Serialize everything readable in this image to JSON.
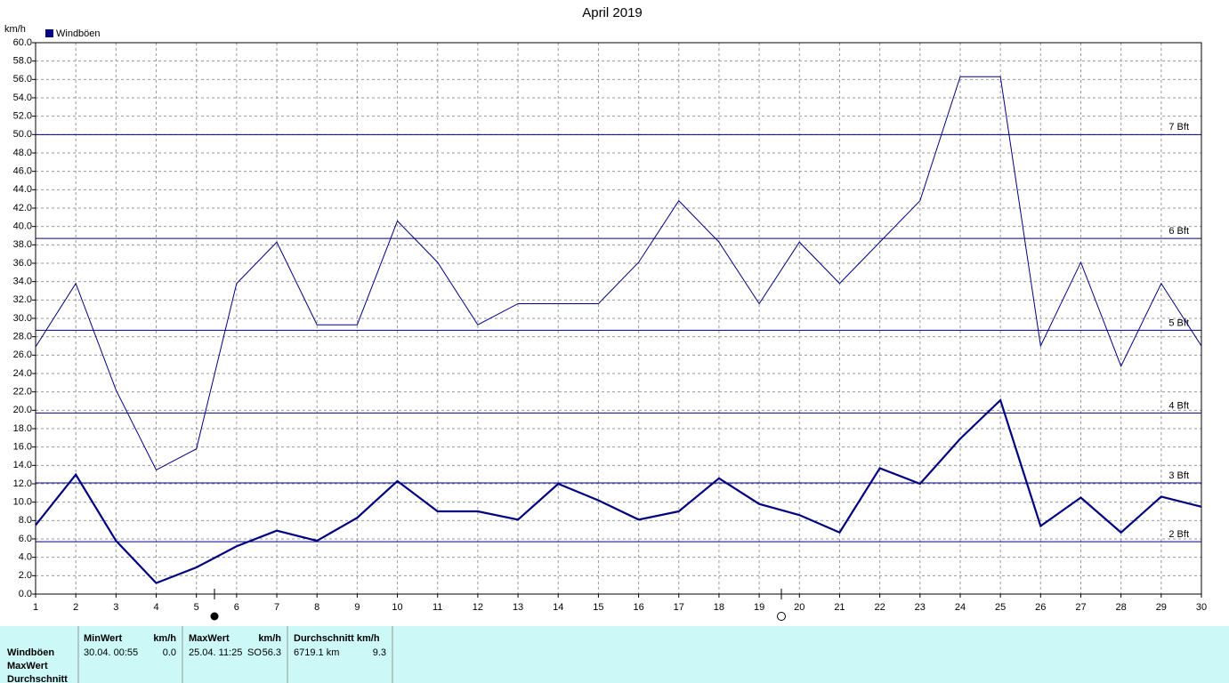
{
  "chart_data": {
    "type": "line",
    "title": "April 2019",
    "y_label": "km/h",
    "x": [
      1,
      2,
      3,
      4,
      5,
      6,
      7,
      8,
      9,
      10,
      11,
      12,
      13,
      14,
      15,
      16,
      17,
      18,
      19,
      20,
      21,
      22,
      23,
      24,
      25,
      26,
      27,
      28,
      29,
      30
    ],
    "xlim": [
      1,
      30
    ],
    "xticks": [
      1,
      2,
      3,
      4,
      5,
      6,
      7,
      8,
      9,
      10,
      11,
      12,
      13,
      14,
      15,
      16,
      17,
      18,
      19,
      20,
      21,
      22,
      23,
      24,
      25,
      26,
      27,
      28,
      29,
      30
    ],
    "ylim": [
      0,
      60
    ],
    "yticks": [
      {
        "value": 0,
        "label": "0.0"
      },
      {
        "value": 2,
        "label": "2.0"
      },
      {
        "value": 4,
        "label": "4.0"
      },
      {
        "value": 6,
        "label": "6.0"
      },
      {
        "value": 8,
        "label": "8.0"
      },
      {
        "value": 10,
        "label": "10.0"
      },
      {
        "value": 12,
        "label": "12.0"
      },
      {
        "value": 14,
        "label": "14.0"
      },
      {
        "value": 16,
        "label": "16.0"
      },
      {
        "value": 18,
        "label": "18.0"
      },
      {
        "value": 20,
        "label": "20.0"
      },
      {
        "value": 22,
        "label": "22.0"
      },
      {
        "value": 24,
        "label": "24.0"
      },
      {
        "value": 26,
        "label": "26.0"
      },
      {
        "value": 28,
        "label": "28.0"
      },
      {
        "value": 30,
        "label": "30.0"
      },
      {
        "value": 32,
        "label": "32.0"
      },
      {
        "value": 34,
        "label": "34.0"
      },
      {
        "value": 36,
        "label": "36.0"
      },
      {
        "value": 38,
        "label": "38.0"
      },
      {
        "value": 40,
        "label": "40.0"
      },
      {
        "value": 42,
        "label": "42.0"
      },
      {
        "value": 44,
        "label": "44.0"
      },
      {
        "value": 46,
        "label": "46.0"
      },
      {
        "value": 48,
        "label": "48.0"
      },
      {
        "value": 50,
        "label": "50.0"
      },
      {
        "value": 52,
        "label": "52.0"
      },
      {
        "value": 54,
        "label": "54.0"
      },
      {
        "value": 56,
        "label": "56.0"
      },
      {
        "value": 58,
        "label": "58.0"
      },
      {
        "value": 60,
        "label": "60.0"
      }
    ],
    "grid": true,
    "series": [
      {
        "name": "Windböen",
        "color": "#000080",
        "values": [
          26.9,
          33.8,
          22.2,
          13.5,
          15.8,
          33.8,
          38.3,
          29.3,
          29.3,
          40.6,
          36.1,
          29.3,
          31.6,
          31.6,
          31.6,
          36.1,
          42.8,
          38.3,
          31.6,
          38.3,
          33.8,
          38.3,
          42.8,
          56.3,
          56.3,
          27.0,
          36.1,
          24.8,
          33.8,
          27.0
        ]
      },
      {
        "color": "#000080",
        "values": [
          7.5,
          13.0,
          5.8,
          1.2,
          2.9,
          5.2,
          6.9,
          5.8,
          8.3,
          12.3,
          9.0,
          9.0,
          8.1,
          12.0,
          10.2,
          8.1,
          9.0,
          12.6,
          9.8,
          8.6,
          6.7,
          13.7,
          12.0,
          16.9,
          21.1,
          7.4,
          10.5,
          6.7,
          10.6,
          9.5
        ]
      }
    ],
    "reference_lines": [
      {
        "value": 5.7,
        "label": "2 Bft"
      },
      {
        "value": 12.1,
        "label": "3 Bft"
      },
      {
        "value": 19.7,
        "label": "4 Bft"
      },
      {
        "value": 28.7,
        "label": "5 Bft"
      },
      {
        "value": 38.7,
        "label": "6 Bft"
      },
      {
        "value": 50.0,
        "label": "7 Bft"
      }
    ]
  },
  "table": {
    "row_labels": [
      "Windböen",
      "MaxWert",
      "Durchschnitt"
    ],
    "columns": [
      {
        "header": "MinWert",
        "unit": "km/h",
        "cells": [
          "30.04.  00:55",
          "0.0"
        ]
      },
      {
        "header": "MaxWert",
        "unit": "km/h",
        "cells": [
          "25.04.  11:25",
          "SO",
          "56.3"
        ]
      },
      {
        "header": "Durchschnitt km/h",
        "cells": [
          "6719.1 km",
          "9.3"
        ]
      }
    ]
  }
}
